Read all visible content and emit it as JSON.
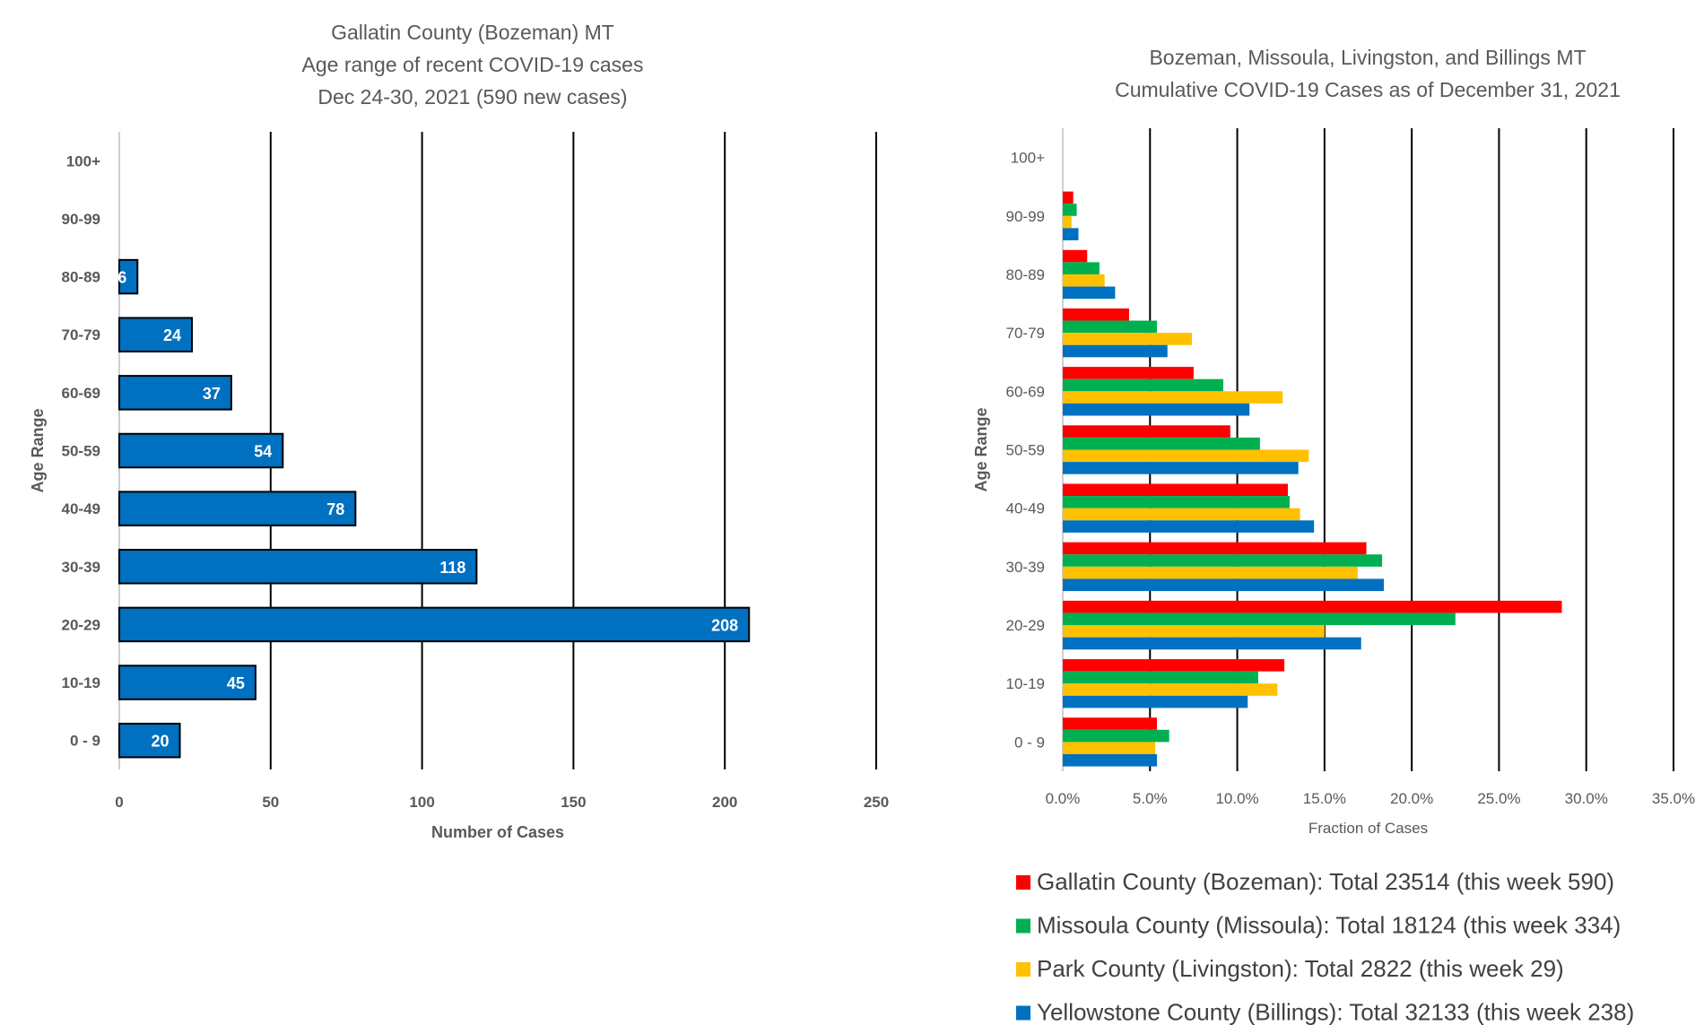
{
  "chart_data": [
    {
      "type": "bar",
      "orientation": "horizontal",
      "title": [
        "Gallatin County (Bozeman) MT",
        "Age range of recent COVID-19 cases",
        "Dec 24-30, 2021 (590 new cases)"
      ],
      "xlabel": "Number of Cases",
      "ylabel": "Age Range",
      "categories": [
        "0 - 9",
        "10-19",
        "20-29",
        "30-39",
        "40-49",
        "50-59",
        "60-69",
        "70-79",
        "80-89",
        "90-99",
        "100+"
      ],
      "values": [
        20,
        45,
        208,
        118,
        78,
        54,
        37,
        24,
        6,
        0,
        0
      ],
      "data_labels": [
        "20",
        "45",
        "208",
        "118",
        "78",
        "54",
        "37",
        "24",
        "6",
        "",
        ""
      ],
      "xlim": [
        0,
        250
      ],
      "xticks": [
        0,
        50,
        100,
        150,
        200,
        250
      ],
      "xtick_labels": [
        "0",
        "50",
        "100",
        "150",
        "200",
        "250"
      ],
      "bar_color": "#0070c0",
      "grid": "vertical",
      "legend": "none"
    },
    {
      "type": "bar",
      "orientation": "horizontal",
      "title": [
        "Bozeman, Missoula, Livingston, and Billings MT",
        "Cumulative COVID-19 Cases as of December 31, 2021"
      ],
      "xlabel": "Fraction of Cases",
      "ylabel": "Age Range",
      "categories": [
        "0 - 9",
        "10-19",
        "20-29",
        "30-39",
        "40-49",
        "50-59",
        "60-69",
        "70-79",
        "80-89",
        "90-99",
        "100+"
      ],
      "xlim": [
        0,
        35
      ],
      "xticks": [
        0,
        5,
        10,
        15,
        20,
        25,
        30,
        35
      ],
      "xtick_labels": [
        "0.0%",
        "5.0%",
        "10.0%",
        "15.0%",
        "20.0%",
        "25.0%",
        "30.0%",
        "35.0%"
      ],
      "grid": "vertical",
      "legend": "bottom",
      "series": [
        {
          "name": "Gallatin County (Bozeman): Total 23514 (this week 590)",
          "color": "#ff0000",
          "values": [
            5.4,
            12.7,
            28.6,
            17.4,
            12.9,
            9.6,
            7.5,
            3.8,
            1.4,
            0.6,
            0.0
          ]
        },
        {
          "name": "Missoula County (Missoula): Total 18124 (this week 334)",
          "color": "#00b050",
          "values": [
            6.1,
            11.2,
            22.5,
            18.3,
            13.0,
            11.3,
            9.2,
            5.4,
            2.1,
            0.8,
            0.0
          ]
        },
        {
          "name": "Park County (Livingston): Total 2822 (this week 29)",
          "color": "#ffc000",
          "values": [
            5.3,
            12.3,
            15.0,
            16.9,
            13.6,
            14.1,
            12.6,
            7.4,
            2.4,
            0.5,
            0.0
          ]
        },
        {
          "name": "Yellowstone County (Billings): Total 32133 (this week 238)",
          "color": "#0070c0",
          "values": [
            5.4,
            10.6,
            17.1,
            18.4,
            14.4,
            13.5,
            10.7,
            6.0,
            3.0,
            0.9,
            0.0
          ]
        }
      ]
    }
  ]
}
